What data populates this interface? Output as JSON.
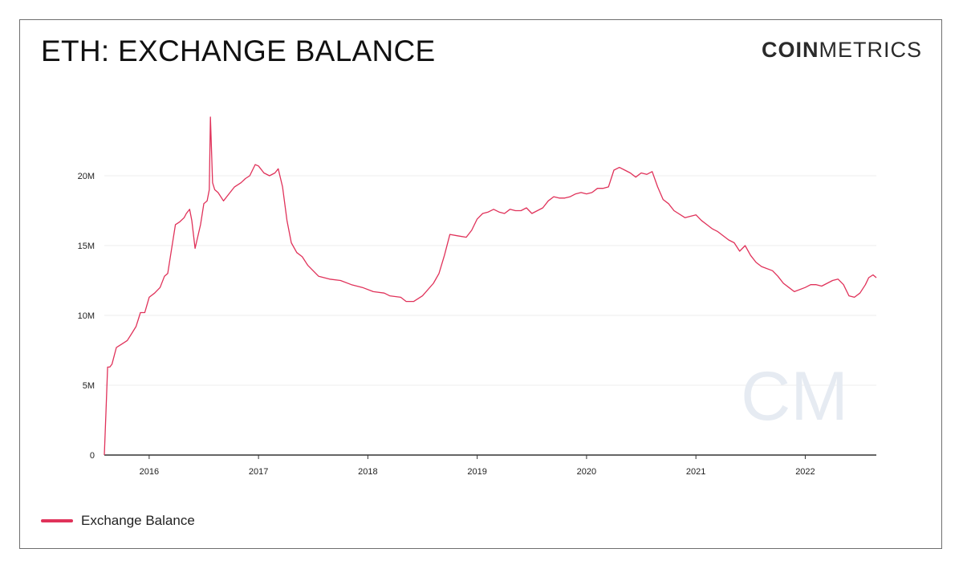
{
  "header": {
    "title": "ETH: EXCHANGE BALANCE",
    "brand_bold": "COIN",
    "brand_light": "METRICS"
  },
  "watermark": "CM",
  "colors": {
    "line": "#e0325a",
    "grid": "#ececec",
    "axis": "#222222",
    "watermark": "#e6ebf2"
  },
  "chart_data": {
    "type": "line",
    "title": "ETH: EXCHANGE BALANCE",
    "xlabel": "",
    "ylabel": "",
    "ylim": [
      0,
      25000000
    ],
    "xlim": [
      2015.59,
      2022.65
    ],
    "yticks": [
      0,
      5000000,
      10000000,
      15000000,
      20000000
    ],
    "ytick_labels": [
      "0",
      "5M",
      "10M",
      "15M",
      "20M"
    ],
    "xticks": [
      2016,
      2017,
      2018,
      2019,
      2020,
      2021,
      2022
    ],
    "xtick_labels": [
      "2016",
      "2017",
      "2018",
      "2019",
      "2020",
      "2021",
      "2022"
    ],
    "grid": "horizontal",
    "legend_position": "bottom-left",
    "series": [
      {
        "name": "Exchange Balance",
        "x": [
          2015.59,
          2015.605,
          2015.62,
          2015.64,
          2015.66,
          2015.7,
          2015.72,
          2015.76,
          2015.8,
          2015.84,
          2015.88,
          2015.92,
          2015.96,
          2016.0,
          2016.05,
          2016.1,
          2016.14,
          2016.17,
          2016.2,
          2016.24,
          2016.28,
          2016.32,
          2016.34,
          2016.37,
          2016.39,
          2016.42,
          2016.47,
          2016.5,
          2016.53,
          2016.55,
          2016.56,
          2016.58,
          2016.6,
          2016.63,
          2016.68,
          2016.73,
          2016.78,
          2016.84,
          2016.88,
          2016.92,
          2016.97,
          2017.0,
          2017.05,
          2017.1,
          2017.15,
          2017.18,
          2017.22,
          2017.26,
          2017.3,
          2017.35,
          2017.4,
          2017.45,
          2017.55,
          2017.65,
          2017.75,
          2017.85,
          2017.95,
          2018.05,
          2018.15,
          2018.2,
          2018.3,
          2018.35,
          2018.42,
          2018.5,
          2018.6,
          2018.65,
          2018.7,
          2018.75,
          2018.82,
          2018.9,
          2018.95,
          2019.0,
          2019.05,
          2019.1,
          2019.15,
          2019.2,
          2019.25,
          2019.3,
          2019.35,
          2019.4,
          2019.45,
          2019.5,
          2019.55,
          2019.6,
          2019.65,
          2019.7,
          2019.75,
          2019.8,
          2019.85,
          2019.9,
          2019.95,
          2020.0,
          2020.05,
          2020.1,
          2020.15,
          2020.2,
          2020.25,
          2020.3,
          2020.35,
          2020.4,
          2020.45,
          2020.5,
          2020.55,
          2020.6,
          2020.65,
          2020.7,
          2020.75,
          2020.8,
          2020.9,
          2021.0,
          2021.05,
          2021.1,
          2021.15,
          2021.2,
          2021.3,
          2021.35,
          2021.4,
          2021.45,
          2021.5,
          2021.55,
          2021.6,
          2021.7,
          2021.75,
          2021.8,
          2021.85,
          2021.9,
          2022.0,
          2022.05,
          2022.1,
          2022.15,
          2022.2,
          2022.25,
          2022.3,
          2022.35,
          2022.4,
          2022.45,
          2022.5,
          2022.55,
          2022.58,
          2022.62,
          2022.65
        ],
        "values": [
          0,
          3000000,
          6300000,
          6300000,
          6500000,
          7700000,
          7800000,
          8000000,
          8200000,
          8700000,
          9200000,
          10200000,
          10200000,
          11300000,
          11600000,
          12000000,
          12800000,
          13000000,
          14500000,
          16500000,
          16700000,
          17000000,
          17300000,
          17600000,
          16800000,
          14800000,
          16500000,
          18000000,
          18200000,
          19000000,
          24200000,
          19500000,
          19000000,
          18800000,
          18200000,
          18700000,
          19200000,
          19500000,
          19800000,
          20000000,
          20800000,
          20700000,
          20200000,
          20000000,
          20200000,
          20500000,
          19200000,
          16800000,
          15200000,
          14500000,
          14200000,
          13600000,
          12800000,
          12600000,
          12500000,
          12200000,
          12000000,
          11700000,
          11600000,
          11400000,
          11300000,
          11000000,
          11000000,
          11400000,
          12300000,
          13000000,
          14300000,
          15800000,
          15700000,
          15600000,
          16100000,
          16900000,
          17300000,
          17400000,
          17600000,
          17400000,
          17300000,
          17600000,
          17500000,
          17500000,
          17700000,
          17300000,
          17500000,
          17700000,
          18200000,
          18500000,
          18400000,
          18400000,
          18500000,
          18700000,
          18800000,
          18700000,
          18800000,
          19100000,
          19100000,
          19200000,
          20400000,
          20600000,
          20400000,
          20200000,
          19900000,
          20200000,
          20100000,
          20300000,
          19200000,
          18300000,
          18000000,
          17500000,
          17000000,
          17200000,
          16800000,
          16500000,
          16200000,
          16000000,
          15400000,
          15200000,
          14600000,
          15000000,
          14300000,
          13800000,
          13500000,
          13200000,
          12800000,
          12300000,
          12000000,
          11700000,
          12000000,
          12200000,
          12200000,
          12100000,
          12300000,
          12500000,
          12600000,
          12200000,
          11400000,
          11300000,
          11600000,
          12200000,
          12700000,
          12900000,
          12700000
        ]
      }
    ]
  },
  "legend": {
    "items": [
      {
        "label": "Exchange Balance"
      }
    ]
  }
}
